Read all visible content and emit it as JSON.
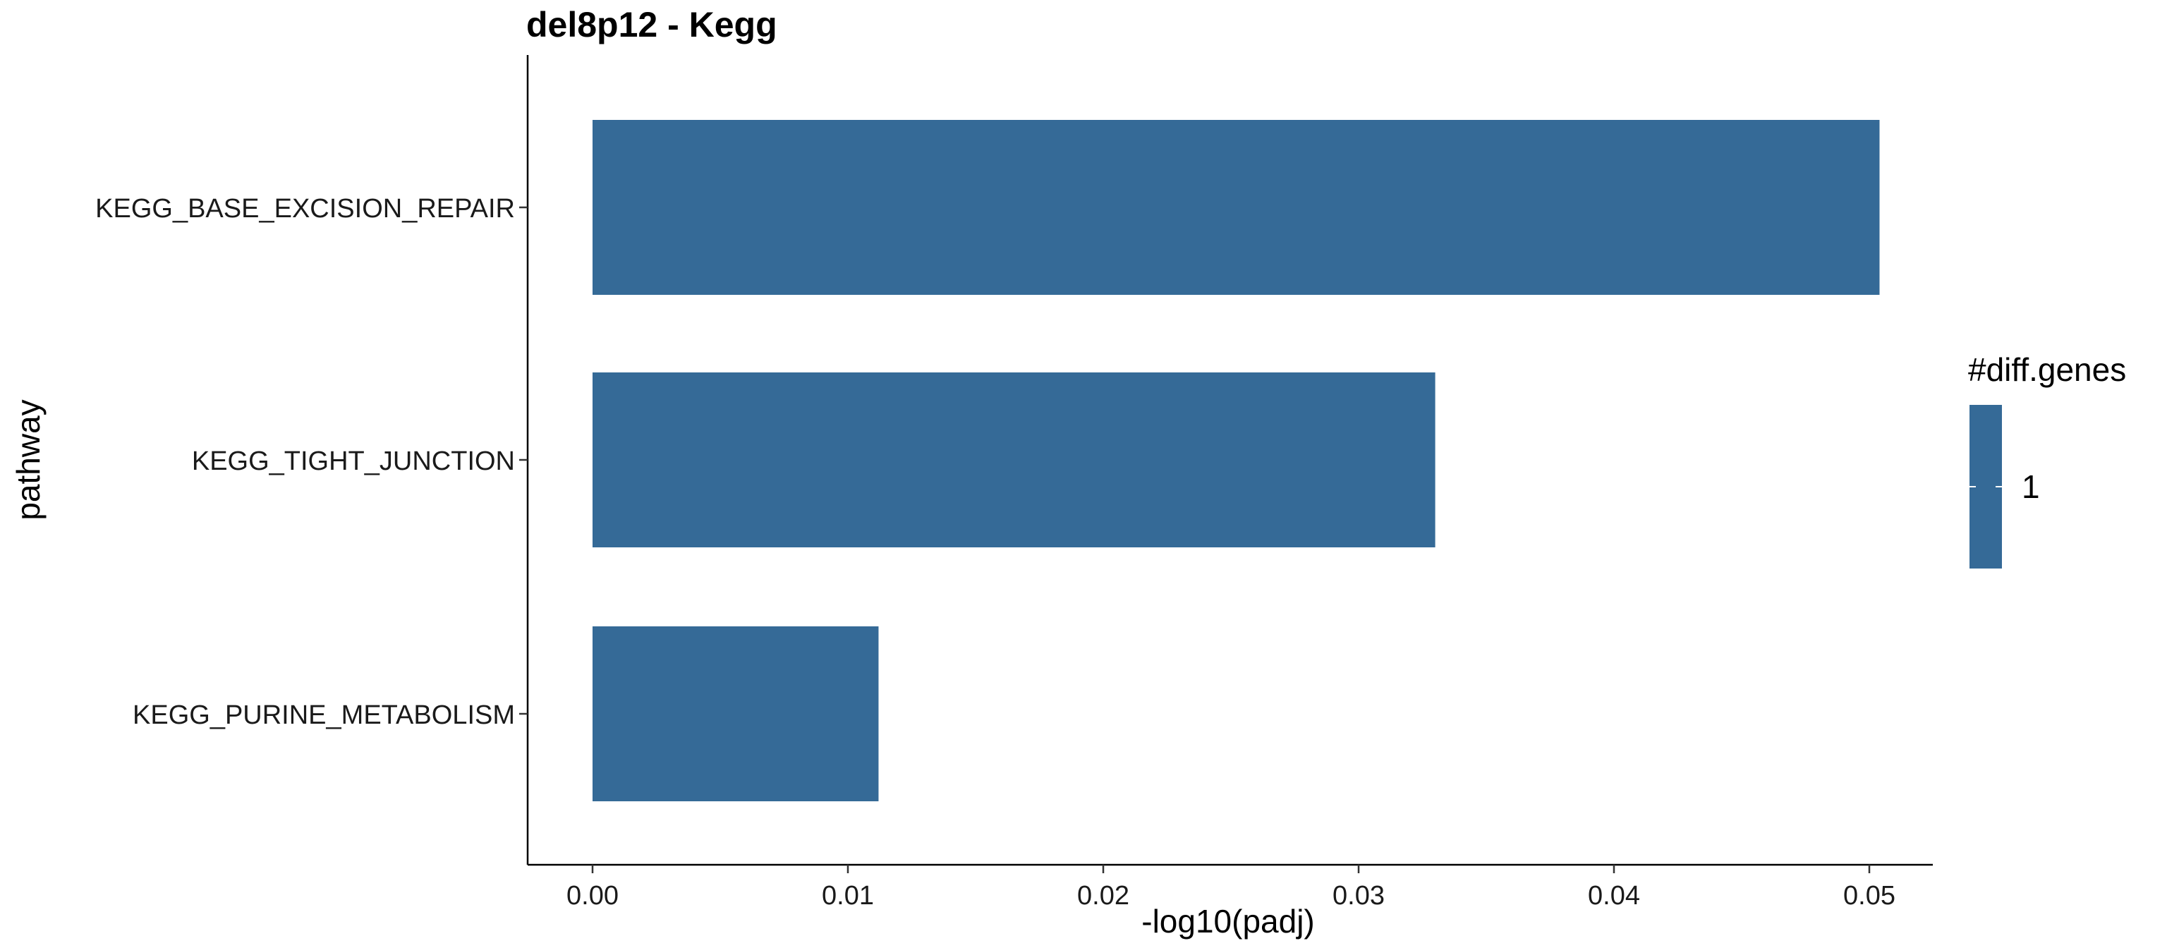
{
  "chart_data": {
    "type": "bar",
    "orientation": "horizontal",
    "title": "del8p12 - Kegg",
    "xlabel": "-log10(padj)",
    "ylabel": "pathway",
    "categories": [
      "KEGG_BASE_EXCISION_REPAIR",
      "KEGG_TIGHT_JUNCTION",
      "KEGG_PURINE_METABOLISM"
    ],
    "values": [
      0.0504,
      0.033,
      0.0112
    ],
    "xlim": [
      0,
      0.053
    ],
    "xticks": [
      0,
      0.01,
      0.02,
      0.03,
      0.04,
      0.05
    ],
    "xtick_labels": [
      "0.00",
      "0.01",
      "0.02",
      "0.03",
      "0.04",
      "0.05"
    ],
    "grid": false,
    "bar_color": "#356A97",
    "legend": {
      "title": "#diff.genes",
      "placement": "right",
      "entries": [
        {
          "label": "1",
          "color": "#356A97"
        }
      ]
    }
  }
}
